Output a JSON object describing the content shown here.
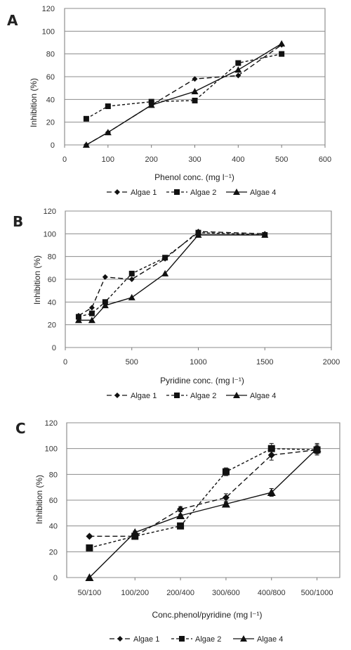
{
  "figure": {
    "panels": [
      {
        "letter": "A",
        "ylabel": "Inhibition (%)",
        "xlabel": "Phenol conc. (mg l⁻¹)",
        "legend": [
          "Algae 1",
          "Algae 2",
          "Algae 4"
        ]
      },
      {
        "letter": "B",
        "ylabel": "Inhibition (%)",
        "xlabel": "Pyridine conc. (mg l⁻¹)",
        "legend": [
          "Algae 1",
          "Algae 2",
          "Algae 4"
        ]
      },
      {
        "letter": "C",
        "ylabel": "Inhibition (%)",
        "xlabel": "Conc.phenol/pyridine (mg l⁻¹)",
        "legend": [
          "Algae 1",
          "Algae 2",
          "Algae 4"
        ]
      }
    ]
  },
  "chart_data": [
    {
      "type": "line",
      "panel": "A",
      "xlabel": "Phenol conc. (mg l⁻¹)",
      "ylabel": "Inhibition (%)",
      "xlim": [
        0,
        600
      ],
      "ylim": [
        0,
        120
      ],
      "xticks": [
        0,
        100,
        200,
        300,
        400,
        500,
        600
      ],
      "yticks": [
        0,
        20,
        40,
        60,
        80,
        100,
        120
      ],
      "grid": "horizontal",
      "legend_position": "bottom",
      "series": [
        {
          "name": "Algae 1",
          "marker": "diamond",
          "dash": "long",
          "x": [
            50,
            100,
            200,
            300,
            400,
            500
          ],
          "y": [
            0,
            11,
            35,
            58,
            61,
            88
          ]
        },
        {
          "name": "Algae 2",
          "marker": "square",
          "dash": "short",
          "x": [
            50,
            100,
            200,
            300,
            400,
            500
          ],
          "y": [
            23,
            34,
            38,
            39,
            72,
            80
          ]
        },
        {
          "name": "Algae 4",
          "marker": "triangle",
          "dash": "solid",
          "x": [
            50,
            100,
            200,
            300,
            400,
            500
          ],
          "y": [
            0,
            11,
            35,
            47,
            66,
            89
          ]
        }
      ]
    },
    {
      "type": "line",
      "panel": "B",
      "xlabel": "Pyridine conc. (mg l⁻¹)",
      "ylabel": "Inhibition (%)",
      "xlim": [
        0,
        2000
      ],
      "ylim": [
        0,
        120
      ],
      "xticks": [
        0,
        500,
        1000,
        1500,
        2000
      ],
      "yticks": [
        0,
        20,
        40,
        60,
        80,
        100,
        120
      ],
      "grid": "horizontal",
      "legend_position": "bottom",
      "series": [
        {
          "name": "Algae 1",
          "marker": "diamond",
          "dash": "long",
          "x": [
            100,
            200,
            300,
            500,
            750,
            1000,
            1500
          ],
          "y": [
            28,
            35,
            62,
            60,
            78,
            102,
            100
          ]
        },
        {
          "name": "Algae 2",
          "marker": "square",
          "dash": "short",
          "x": [
            100,
            200,
            300,
            500,
            750,
            1000,
            1500
          ],
          "y": [
            27,
            30,
            40,
            65,
            79,
            101,
            99
          ]
        },
        {
          "name": "Algae 4",
          "marker": "triangle",
          "dash": "solid",
          "x": [
            100,
            200,
            300,
            500,
            750,
            1000,
            1500
          ],
          "y": [
            24,
            24,
            37,
            44,
            65,
            99,
            99
          ]
        }
      ]
    },
    {
      "type": "line",
      "panel": "C",
      "xlabel": "Conc.phenol/pyridine (mg l⁻¹)",
      "ylabel": "Inhibition (%)",
      "categories": [
        "50/100",
        "100/200",
        "200/400",
        "300/600",
        "400/800",
        "500/1000"
      ],
      "ylim": [
        0,
        120
      ],
      "yticks": [
        0,
        20,
        40,
        60,
        80,
        100,
        120
      ],
      "grid": "horizontal",
      "legend_position": "bottom",
      "error_bars": true,
      "series": [
        {
          "name": "Algae 1",
          "marker": "diamond",
          "dash": "long",
          "values": [
            32,
            32,
            53,
            62,
            95,
            99
          ],
          "errors": [
            0,
            1,
            2,
            3,
            4,
            3
          ]
        },
        {
          "name": "Algae 2",
          "marker": "square",
          "dash": "short",
          "values": [
            23,
            32,
            40,
            82,
            100,
            99
          ],
          "errors": [
            0,
            1,
            1,
            3,
            4,
            4
          ]
        },
        {
          "name": "Algae 4",
          "marker": "triangle",
          "dash": "solid",
          "values": [
            0,
            35,
            48,
            57,
            66,
            100
          ],
          "errors": [
            0,
            1,
            1,
            1,
            3,
            4
          ]
        }
      ]
    }
  ]
}
